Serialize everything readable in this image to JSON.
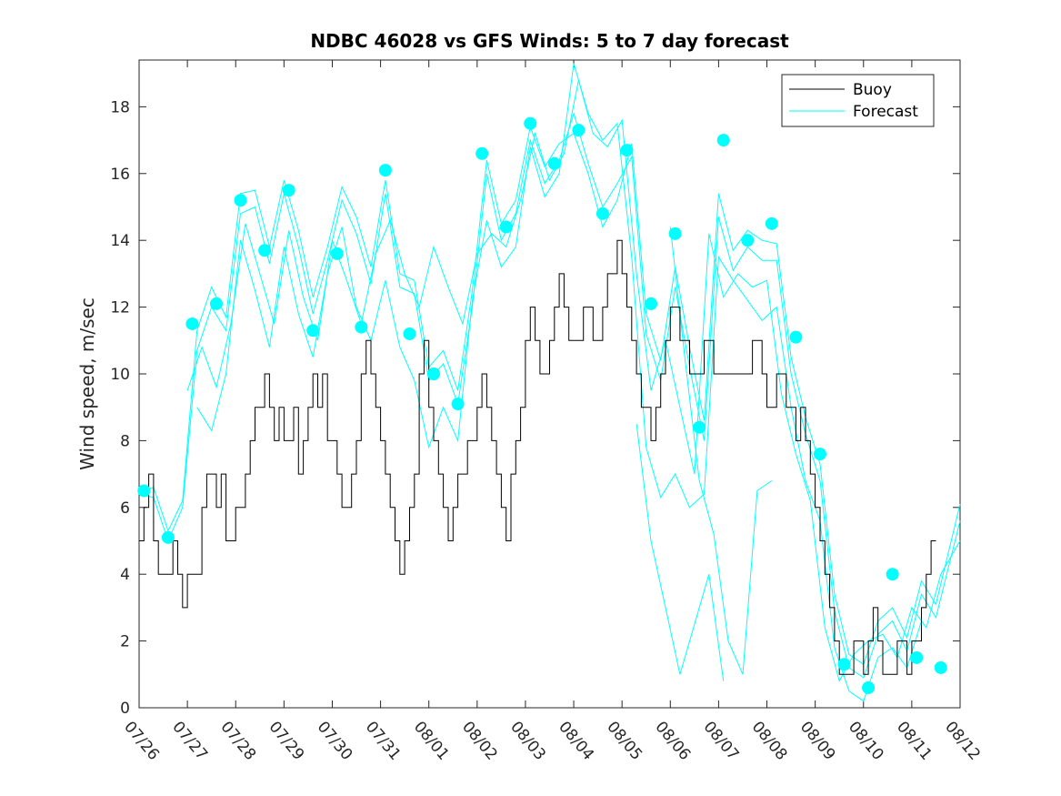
{
  "chart_data": {
    "type": "line",
    "title": "NDBC 46028 vs GFS Winds: 5 to 7 day forecast",
    "xlabel": "",
    "ylabel": "Wind speed, m/sec",
    "xlim": [
      0,
      17
    ],
    "ylim": [
      0,
      19.4
    ],
    "x_tick_labels": [
      "07/26",
      "07/27",
      "07/28",
      "07/29",
      "07/30",
      "07/31",
      "08/01",
      "08/02",
      "08/03",
      "08/04",
      "08/05",
      "08/06",
      "08/07",
      "08/08",
      "08/09",
      "08/10",
      "08/11",
      "08/12"
    ],
    "y_ticks": [
      0,
      2,
      4,
      6,
      8,
      10,
      12,
      14,
      16,
      18
    ],
    "legend": {
      "position": "top-right",
      "entries": [
        "Buoy",
        "Forecast"
      ]
    },
    "colors": {
      "buoy": "#000000",
      "forecast": "#00ffff"
    },
    "buoy_series": {
      "name": "Buoy",
      "x": [
        0,
        0.1,
        0.2,
        0.3,
        0.4,
        0.5,
        0.6,
        0.7,
        0.8,
        0.9,
        1.0,
        1.1,
        1.2,
        1.3,
        1.4,
        1.5,
        1.6,
        1.7,
        1.8,
        1.9,
        2.0,
        2.1,
        2.2,
        2.3,
        2.4,
        2.5,
        2.6,
        2.7,
        2.8,
        2.9,
        3.0,
        3.1,
        3.2,
        3.3,
        3.4,
        3.5,
        3.6,
        3.7,
        3.8,
        3.9,
        4.0,
        4.1,
        4.2,
        4.3,
        4.4,
        4.5,
        4.6,
        4.7,
        4.8,
        4.9,
        5.0,
        5.1,
        5.2,
        5.3,
        5.4,
        5.5,
        5.6,
        5.7,
        5.8,
        5.9,
        6.0,
        6.1,
        6.2,
        6.3,
        6.4,
        6.5,
        6.6,
        6.7,
        6.8,
        6.9,
        7.0,
        7.1,
        7.2,
        7.3,
        7.4,
        7.5,
        7.6,
        7.7,
        7.8,
        7.9,
        8.0,
        8.1,
        8.2,
        8.3,
        8.4,
        8.5,
        8.6,
        8.7,
        8.8,
        8.9,
        9.0,
        9.1,
        9.2,
        9.3,
        9.4,
        9.5,
        9.6,
        9.7,
        9.8,
        9.9,
        10.0,
        10.1,
        10.2,
        10.3,
        10.4,
        10.5,
        10.6,
        10.7,
        10.8,
        10.9,
        11.0,
        11.1,
        11.2,
        11.3,
        11.4,
        11.5,
        11.6,
        11.7,
        11.8,
        11.9,
        12.0,
        12.1,
        12.2,
        12.3,
        12.4,
        12.5,
        12.6,
        12.7,
        12.8,
        12.9,
        13.0,
        13.1,
        13.2,
        13.3,
        13.4,
        13.5,
        13.6,
        13.7,
        13.8,
        13.9,
        14.0,
        14.1,
        14.2,
        14.3,
        14.4,
        14.5,
        14.6,
        14.7,
        14.8,
        14.9,
        15.0,
        15.1,
        15.2,
        15.3,
        15.4,
        15.5,
        15.6,
        15.7,
        15.8,
        15.9,
        16.0,
        16.1,
        16.2,
        16.3,
        16.4,
        16.5
      ],
      "y": [
        5,
        6,
        7,
        5,
        4,
        4,
        4,
        5,
        4,
        3,
        4,
        4,
        4,
        6,
        7,
        7,
        6,
        7,
        5,
        5,
        6,
        6,
        7,
        8,
        9,
        9,
        10,
        9,
        8,
        9,
        8,
        8,
        9,
        7,
        8,
        9,
        10,
        9,
        10,
        8,
        8,
        7,
        6,
        6,
        7,
        8,
        10,
        11,
        10,
        9,
        8,
        7,
        6,
        5,
        4,
        5,
        6,
        7,
        10,
        11,
        9,
        8,
        7,
        6,
        5,
        6,
        7,
        7,
        8,
        8,
        9,
        10,
        9,
        8,
        7,
        6,
        5,
        7,
        8,
        9,
        11,
        12,
        11,
        10,
        10,
        11,
        12,
        13,
        12,
        11,
        11,
        11,
        12,
        12,
        11,
        11,
        12,
        13,
        13,
        14,
        13,
        12,
        11,
        10,
        9,
        9,
        8,
        9,
        10,
        11,
        12,
        12,
        11,
        11,
        10,
        10,
        10,
        11,
        11,
        10,
        10,
        10,
        10,
        10,
        10,
        10,
        10,
        11,
        11,
        10,
        9,
        9,
        10,
        10,
        9,
        9,
        8,
        9,
        8,
        7,
        6,
        5,
        4,
        3,
        2,
        1,
        1,
        1,
        2,
        2,
        1,
        2,
        3,
        2,
        1,
        1,
        1,
        2,
        2,
        1,
        2,
        2,
        3,
        4,
        5,
        5
      ]
    },
    "forecast_dots": {
      "name": "Forecast",
      "x": [
        0.1,
        0.6,
        1.1,
        1.6,
        2.1,
        2.6,
        3.1,
        3.6,
        4.1,
        4.6,
        5.1,
        5.6,
        6.1,
        6.6,
        7.1,
        7.6,
        8.1,
        8.6,
        9.1,
        9.6,
        10.1,
        10.6,
        11.1,
        11.6,
        12.1,
        12.6,
        13.1,
        13.6,
        14.1,
        14.6,
        15.1,
        15.6,
        16.1,
        16.6
      ],
      "y": [
        6.5,
        5.1,
        11.5,
        12.1,
        15.2,
        13.7,
        15.5,
        11.3,
        13.6,
        11.4,
        16.1,
        11.2,
        10.0,
        9.1,
        16.6,
        14.4,
        17.5,
        16.3,
        17.3,
        14.8,
        16.7,
        12.1,
        14.2,
        8.4,
        17.0,
        14.0,
        14.5,
        11.1,
        7.6,
        1.3,
        0.6,
        4.0,
        1.5,
        1.2
      ]
    },
    "forecast_lines": [
      {
        "name": "",
        "x": [
          0.0,
          0.3,
          0.6,
          0.9,
          1.2,
          1.5,
          1.8,
          2.1,
          2.4,
          2.7,
          3.0,
          3.3,
          3.6,
          3.9,
          4.2,
          4.5,
          4.8,
          5.1,
          5.4,
          5.7,
          6.0,
          6.3,
          6.6,
          6.9,
          7.2,
          7.5,
          7.8,
          8.1,
          8.4,
          8.7,
          9.0,
          9.3,
          9.6,
          9.9,
          10.2,
          10.5,
          10.8,
          11.1,
          11.4,
          11.7,
          12.0,
          12.3,
          12.6,
          12.9,
          13.2,
          13.5,
          13.8,
          14.1,
          14.4,
          14.7,
          15.0,
          15.3,
          15.6,
          15.9,
          16.2,
          16.5,
          17.0
        ],
        "y": [
          6.5,
          6.6,
          5.3,
          6.2,
          11.3,
          12.6,
          11.7,
          15.4,
          15.5,
          13.8,
          15.8,
          14.3,
          12.3,
          13.8,
          15.6,
          14.7,
          13.2,
          15.8,
          13.0,
          12.8,
          10.2,
          10.7,
          9.5,
          12.5,
          16.4,
          14.5,
          15.2,
          17.4,
          16.2,
          16.9,
          17.2,
          16.0,
          14.4,
          15.2,
          16.9,
          11.8,
          10.4,
          13.2,
          10.8,
          8.6,
          15.4,
          13.7,
          14.3,
          14.0,
          13.9,
          10.5,
          8.7,
          7.3,
          3.4,
          1.6,
          1.3,
          2.6,
          3.0,
          2.1,
          3.8,
          3.1,
          6.1
        ]
      },
      {
        "name": "",
        "x": [
          0.0,
          0.3,
          0.6,
          0.9,
          1.2,
          1.5,
          1.8,
          2.1,
          2.4,
          2.7,
          3.0,
          3.3,
          3.6,
          3.9,
          4.2,
          4.5,
          4.8,
          5.1,
          5.4,
          5.7,
          6.0,
          6.3,
          6.6,
          6.9,
          7.2,
          7.5,
          7.8,
          8.1,
          8.4,
          8.7,
          9.0,
          9.3,
          9.6,
          9.9,
          10.2,
          10.5,
          10.8,
          11.1,
          11.4,
          11.7,
          12.0,
          12.3,
          12.6,
          12.9,
          13.2,
          13.5,
          13.8,
          14.1,
          14.4,
          14.7,
          15.0,
          15.3,
          15.6,
          15.9,
          16.2,
          16.5,
          17.0
        ],
        "y": [
          6.4,
          6.3,
          5.0,
          6.0,
          10.7,
          12.0,
          11.3,
          14.8,
          15.0,
          13.3,
          15.4,
          13.8,
          11.8,
          13.4,
          15.2,
          14.2,
          12.7,
          15.4,
          12.6,
          12.4,
          9.8,
          10.3,
          9.1,
          12.0,
          16.0,
          14.0,
          14.8,
          17.0,
          15.7,
          16.4,
          17.8,
          16.3,
          15.0,
          15.7,
          16.5,
          11.2,
          9.8,
          12.6,
          10.2,
          8.0,
          14.7,
          13.1,
          13.8,
          13.4,
          13.4,
          10.0,
          8.2,
          6.8,
          2.9,
          1.2,
          0.9,
          2.2,
          2.6,
          1.7,
          3.4,
          2.7,
          5.6
        ]
      },
      {
        "name": "",
        "x": [
          1.0,
          1.3,
          1.6,
          1.9,
          2.2,
          2.5,
          2.8,
          3.1,
          3.4,
          3.7,
          4.0,
          4.3,
          4.6,
          4.9,
          5.2,
          5.5,
          5.8,
          6.1,
          6.4,
          6.7,
          7.0,
          7.3,
          7.6,
          7.9,
          8.2,
          8.5,
          8.8,
          9.1,
          9.4,
          9.7,
          10.0,
          10.3,
          10.6,
          10.9,
          11.2,
          11.5,
          11.8,
          12.1,
          12.4,
          12.7,
          13.0,
          13.3,
          13.6,
          13.9,
          14.2,
          14.5,
          14.8,
          15.1,
          15.4,
          15.7,
          16.0,
          16.3,
          16.6,
          17.0
        ],
        "y": [
          9.5,
          10.8,
          9.6,
          11.5,
          14.5,
          13.0,
          11.5,
          14.3,
          12.3,
          11.0,
          14.0,
          12.8,
          11.5,
          13.6,
          14.6,
          13.0,
          12.0,
          13.8,
          12.6,
          11.5,
          13.6,
          14.2,
          13.8,
          15.2,
          17.2,
          15.8,
          16.6,
          18.8,
          17.2,
          16.8,
          17.6,
          13.0,
          9.5,
          11.0,
          9.0,
          7.0,
          14.2,
          12.3,
          13.0,
          12.6,
          12.8,
          9.4,
          7.6,
          6.2,
          2.4,
          0.8,
          1.6,
          2.0,
          2.2,
          1.5,
          3.0,
          2.4,
          4.0,
          5.0
        ]
      },
      {
        "name": "",
        "x": [
          1.2,
          1.5,
          1.8,
          2.1,
          2.4,
          2.7,
          3.0,
          3.3,
          3.6,
          3.9,
          4.2,
          4.5,
          4.8,
          5.1,
          5.4,
          5.7,
          6.0,
          6.3,
          6.6,
          6.9,
          7.2,
          7.5,
          7.8,
          8.1,
          8.4,
          8.7,
          9.0,
          9.3,
          9.6,
          9.9,
          10.2,
          10.5,
          10.8,
          11.1,
          11.4,
          11.7,
          12.0,
          12.3,
          12.6,
          12.9,
          13.2,
          13.5,
          13.8,
          14.1,
          14.4,
          14.7,
          15.0,
          15.3,
          15.6,
          15.9,
          16.2
        ],
        "y": [
          9.0,
          8.3,
          10.0,
          14.0,
          12.5,
          10.8,
          13.8,
          11.8,
          10.5,
          13.0,
          14.4,
          12.0,
          11.0,
          12.8,
          10.8,
          9.8,
          7.8,
          9.0,
          8.0,
          12.2,
          14.6,
          13.2,
          13.8,
          16.8,
          15.3,
          16.0,
          19.3,
          17.8,
          17.0,
          17.5,
          13.5,
          7.8,
          6.3,
          7.0,
          6.0,
          6.4,
          13.5,
          12.8,
          12.2,
          11.6,
          12.0,
          9.0,
          6.8,
          5.6,
          1.8,
          0.5,
          0.2,
          1.5,
          1.8,
          1.2,
          2.6
        ]
      },
      {
        "name": "",
        "x": [
          10.3,
          10.6,
          10.9,
          11.2,
          11.5,
          11.8,
          12.1
        ],
        "y": [
          8.5,
          5.0,
          3.0,
          1.0,
          2.5,
          4.0,
          0.8
        ]
      },
      {
        "name": "",
        "x": [
          11.0,
          11.3,
          11.6,
          11.9,
          12.2,
          12.5,
          12.8,
          13.1
        ],
        "y": [
          14.4,
          10.5,
          6.8,
          5.2,
          2.0,
          1.0,
          6.5,
          6.8
        ]
      }
    ]
  }
}
